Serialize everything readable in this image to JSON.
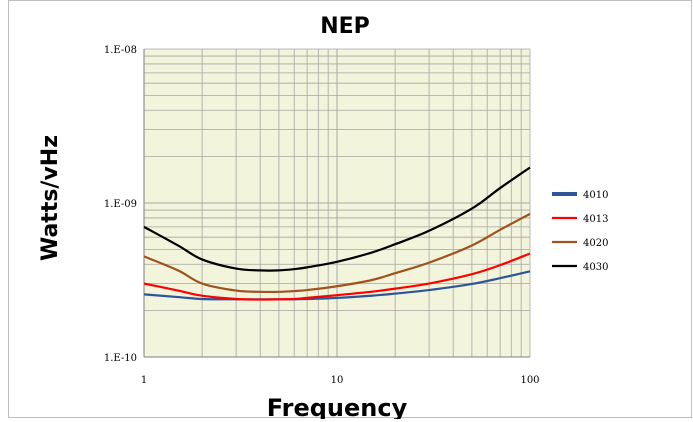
{
  "chart_data": {
    "type": "line",
    "title": "NEP",
    "xlabel": "Frequency",
    "ylabel": "Watts/vHz",
    "x_scale": "log",
    "y_scale": "log",
    "xlim": [
      1,
      100
    ],
    "ylim": [
      1e-10,
      1e-08
    ],
    "x_tick_labels": [
      "1",
      "10",
      "100"
    ],
    "y_tick_labels": [
      "1.E-08",
      "1.E-09",
      "1.E-10"
    ],
    "grid": true,
    "legend_position": "right",
    "background": "#f2f4dc",
    "x": [
      1,
      1.5,
      2,
      3,
      4,
      5,
      6,
      7,
      10,
      15,
      20,
      30,
      50,
      70,
      100
    ],
    "series": [
      {
        "name": "4010",
        "color": "#2e5597",
        "values": [
          2.55e-10,
          2.45e-10,
          2.38e-10,
          2.37e-10,
          2.37e-10,
          2.37e-10,
          2.37e-10,
          2.38e-10,
          2.42e-10,
          2.5e-10,
          2.58e-10,
          2.72e-10,
          2.98e-10,
          3.25e-10,
          3.6e-10
        ]
      },
      {
        "name": "4013",
        "color": "#ff0000",
        "values": [
          3e-10,
          2.7e-10,
          2.5e-10,
          2.38e-10,
          2.36e-10,
          2.37e-10,
          2.38e-10,
          2.42e-10,
          2.52e-10,
          2.65e-10,
          2.78e-10,
          3e-10,
          3.45e-10,
          3.95e-10,
          4.7e-10
        ]
      },
      {
        "name": "4020",
        "color": "#a0521d",
        "values": [
          4.5e-10,
          3.65e-10,
          3e-10,
          2.7e-10,
          2.65e-10,
          2.65e-10,
          2.68e-10,
          2.72e-10,
          2.88e-10,
          3.15e-10,
          3.5e-10,
          4.1e-10,
          5.3e-10,
          6.7e-10,
          8.5e-10
        ]
      },
      {
        "name": "4030",
        "color": "#000000",
        "values": [
          7e-10,
          5.3e-10,
          4.3e-10,
          3.75e-10,
          3.65e-10,
          3.65e-10,
          3.72e-10,
          3.82e-10,
          4.15e-10,
          4.75e-10,
          5.4e-10,
          6.6e-10,
          9.2e-10,
          1.25e-09,
          1.7e-09
        ]
      }
    ]
  }
}
